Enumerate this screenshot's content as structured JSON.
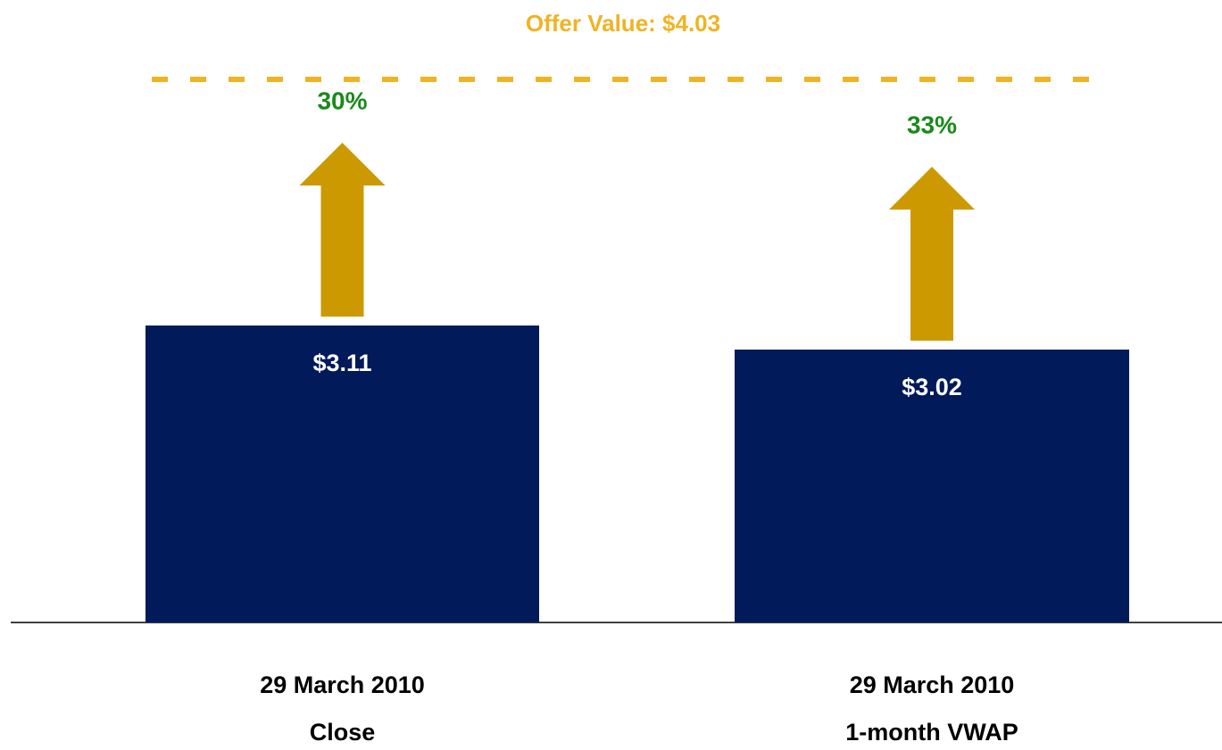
{
  "chart_data": {
    "type": "bar",
    "title": "Offer Value: $4.03",
    "offer_value": 4.03,
    "offer_color": "#f0b323",
    "categories": [
      [
        "29 March 2010",
        "Close"
      ],
      [
        "29 March 2010",
        "1-month VWAP"
      ]
    ],
    "values": [
      3.11,
      3.02
    ],
    "value_labels": [
      "$3.11",
      "$3.02"
    ],
    "color": "#001a5a",
    "premiums": [
      30,
      33
    ],
    "premium_labels": [
      "30%",
      "33%"
    ],
    "premium_color": "#1a8a1a",
    "arrow_color": "#cc9a00",
    "ylim": [
      2,
      4.3
    ]
  }
}
